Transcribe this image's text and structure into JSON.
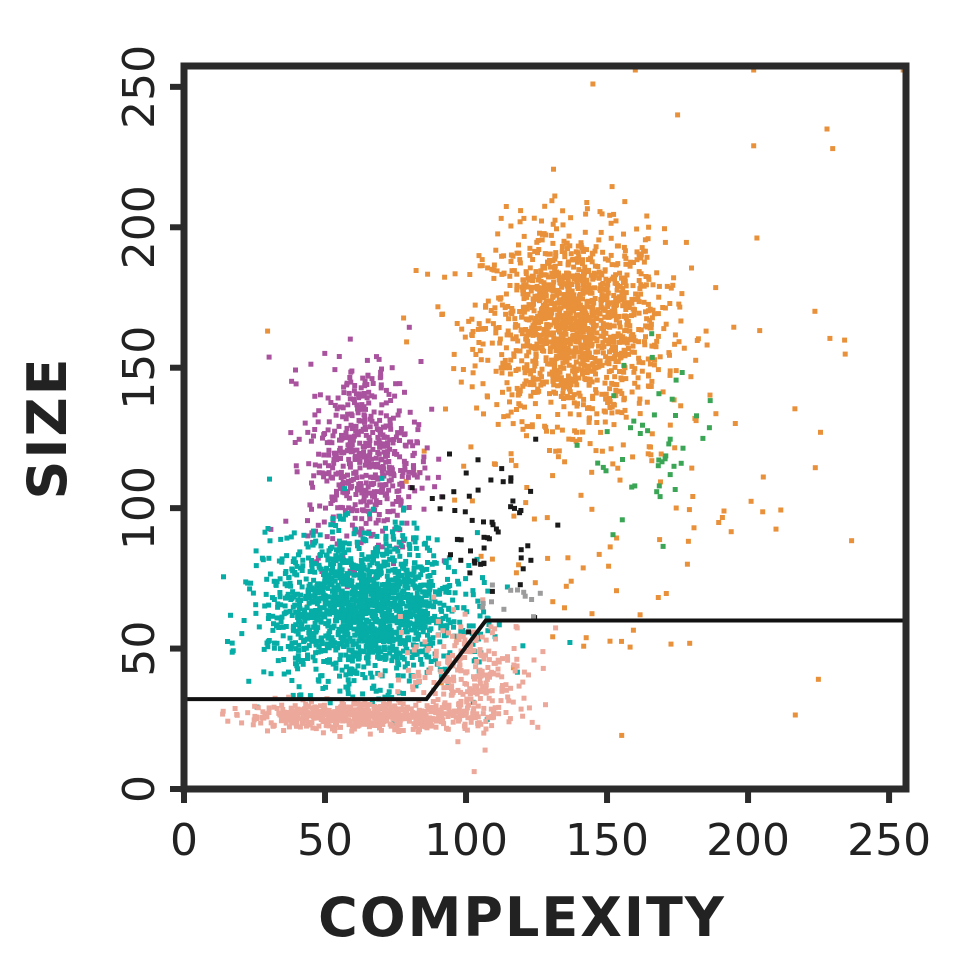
{
  "chart_data": {
    "type": "scatter",
    "title": "",
    "xlabel": "COMPLEXITY",
    "ylabel": "SIZE",
    "xlim": [
      0,
      256
    ],
    "ylim": [
      0,
      256
    ],
    "xticks": [
      0,
      50,
      100,
      150,
      200,
      250
    ],
    "yticks": [
      0,
      50,
      100,
      150,
      200,
      250
    ],
    "x_tick_labels": [
      "0",
      "50",
      "100",
      "150",
      "200",
      "250"
    ],
    "y_tick_labels": [
      "0",
      "50",
      "100",
      "150",
      "200",
      "250"
    ],
    "grid": false,
    "legend": "none",
    "series": [
      {
        "color": "#e8913a",
        "clusters": [
          {
            "x": 138,
            "y": 165,
            "sx": 16,
            "sy": 17,
            "n": 1400
          },
          {
            "x": 150,
            "y": 112,
            "sx": 40,
            "sy": 40,
            "n": 130
          }
        ],
        "points": [
          [
            160,
            256
          ],
          [
            202,
            256
          ],
          [
            255,
            256
          ],
          [
            228,
            235
          ],
          [
            230,
            228
          ],
          [
            202,
            229
          ],
          [
            175,
            240
          ],
          [
            145,
            251
          ]
        ]
      },
      {
        "color": "#a9539e",
        "clusters": [
          {
            "x": 64,
            "y": 118,
            "sx": 10,
            "sy": 17,
            "n": 550
          }
        ],
        "points": []
      },
      {
        "color": "#06aca6",
        "clusters": [
          {
            "x": 64,
            "y": 64,
            "sx": 17,
            "sy": 13,
            "n": 1600
          }
        ],
        "points": []
      },
      {
        "color": "#eca89a",
        "clusters": [
          {
            "x": 62,
            "y": 26,
            "sx": 20,
            "sy": 2.2,
            "n": 600
          },
          {
            "x": 102,
            "y": 40,
            "sx": 12,
            "sy": 10,
            "n": 260
          }
        ],
        "points": []
      },
      {
        "color": "#3aa655",
        "clusters": [
          {
            "x": 168,
            "y": 120,
            "sx": 12,
            "sy": 16,
            "n": 45
          }
        ],
        "points": []
      },
      {
        "color": "#1a1a1a",
        "clusters": [
          {
            "x": 108,
            "y": 95,
            "sx": 9,
            "sy": 14,
            "n": 55
          }
        ],
        "points": []
      },
      {
        "color": "#9c9c9c",
        "clusters": [
          {
            "x": 118,
            "y": 67,
            "sx": 8,
            "sy": 3,
            "n": 12
          }
        ],
        "points": []
      }
    ],
    "threshold_line": {
      "color": "#111111",
      "x": [
        0,
        86,
        107,
        256
      ],
      "y": [
        32,
        32,
        60,
        60
      ]
    }
  }
}
